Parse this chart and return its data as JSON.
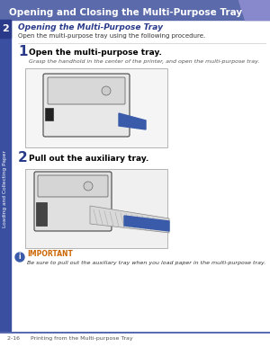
{
  "bg_color": "#ffffff",
  "header_bg": "#5a6aaa",
  "header_text": "Opening and Closing the Multi-Purpose Tray",
  "header_text_color": "#ffffff",
  "header_font_size": 7.5,
  "sidebar_bg": "#3a4fa0",
  "sidebar_text": "Loading and Collecting Paper",
  "sidebar_text_color": "#ffffff",
  "sidebar_number": "2",
  "sidebar_number_color": "#ffffff",
  "section_title": "Opening the Multi-Purpose Tray",
  "section_title_color": "#2a3a8a",
  "section_desc": "Open the multi-purpose tray using the following procedure.",
  "step1_number": "1",
  "step1_title": "Open the multi-purpose tray.",
  "step1_desc": "Grasp the handhold in the center of the printer, and open the multi-purpose tray.",
  "step2_number": "2",
  "step2_title": "Pull out the auxiliary tray.",
  "important_label": "IMPORTANT",
  "important_text": "Be sure to pull out the auxiliary tray when you load paper in the multi-purpose tray.",
  "footer_text": "2-16      Printing from the Multi-purpose Tray",
  "footer_text_color": "#555555",
  "step_number_color": "#2a3a8a",
  "step_title_color": "#000000",
  "step_desc_color": "#555555",
  "important_label_color": "#cc6600",
  "divider_color": "#cccccc",
  "footer_line_color": "#3a4fa0",
  "header_stripe_color": "#8888cc"
}
